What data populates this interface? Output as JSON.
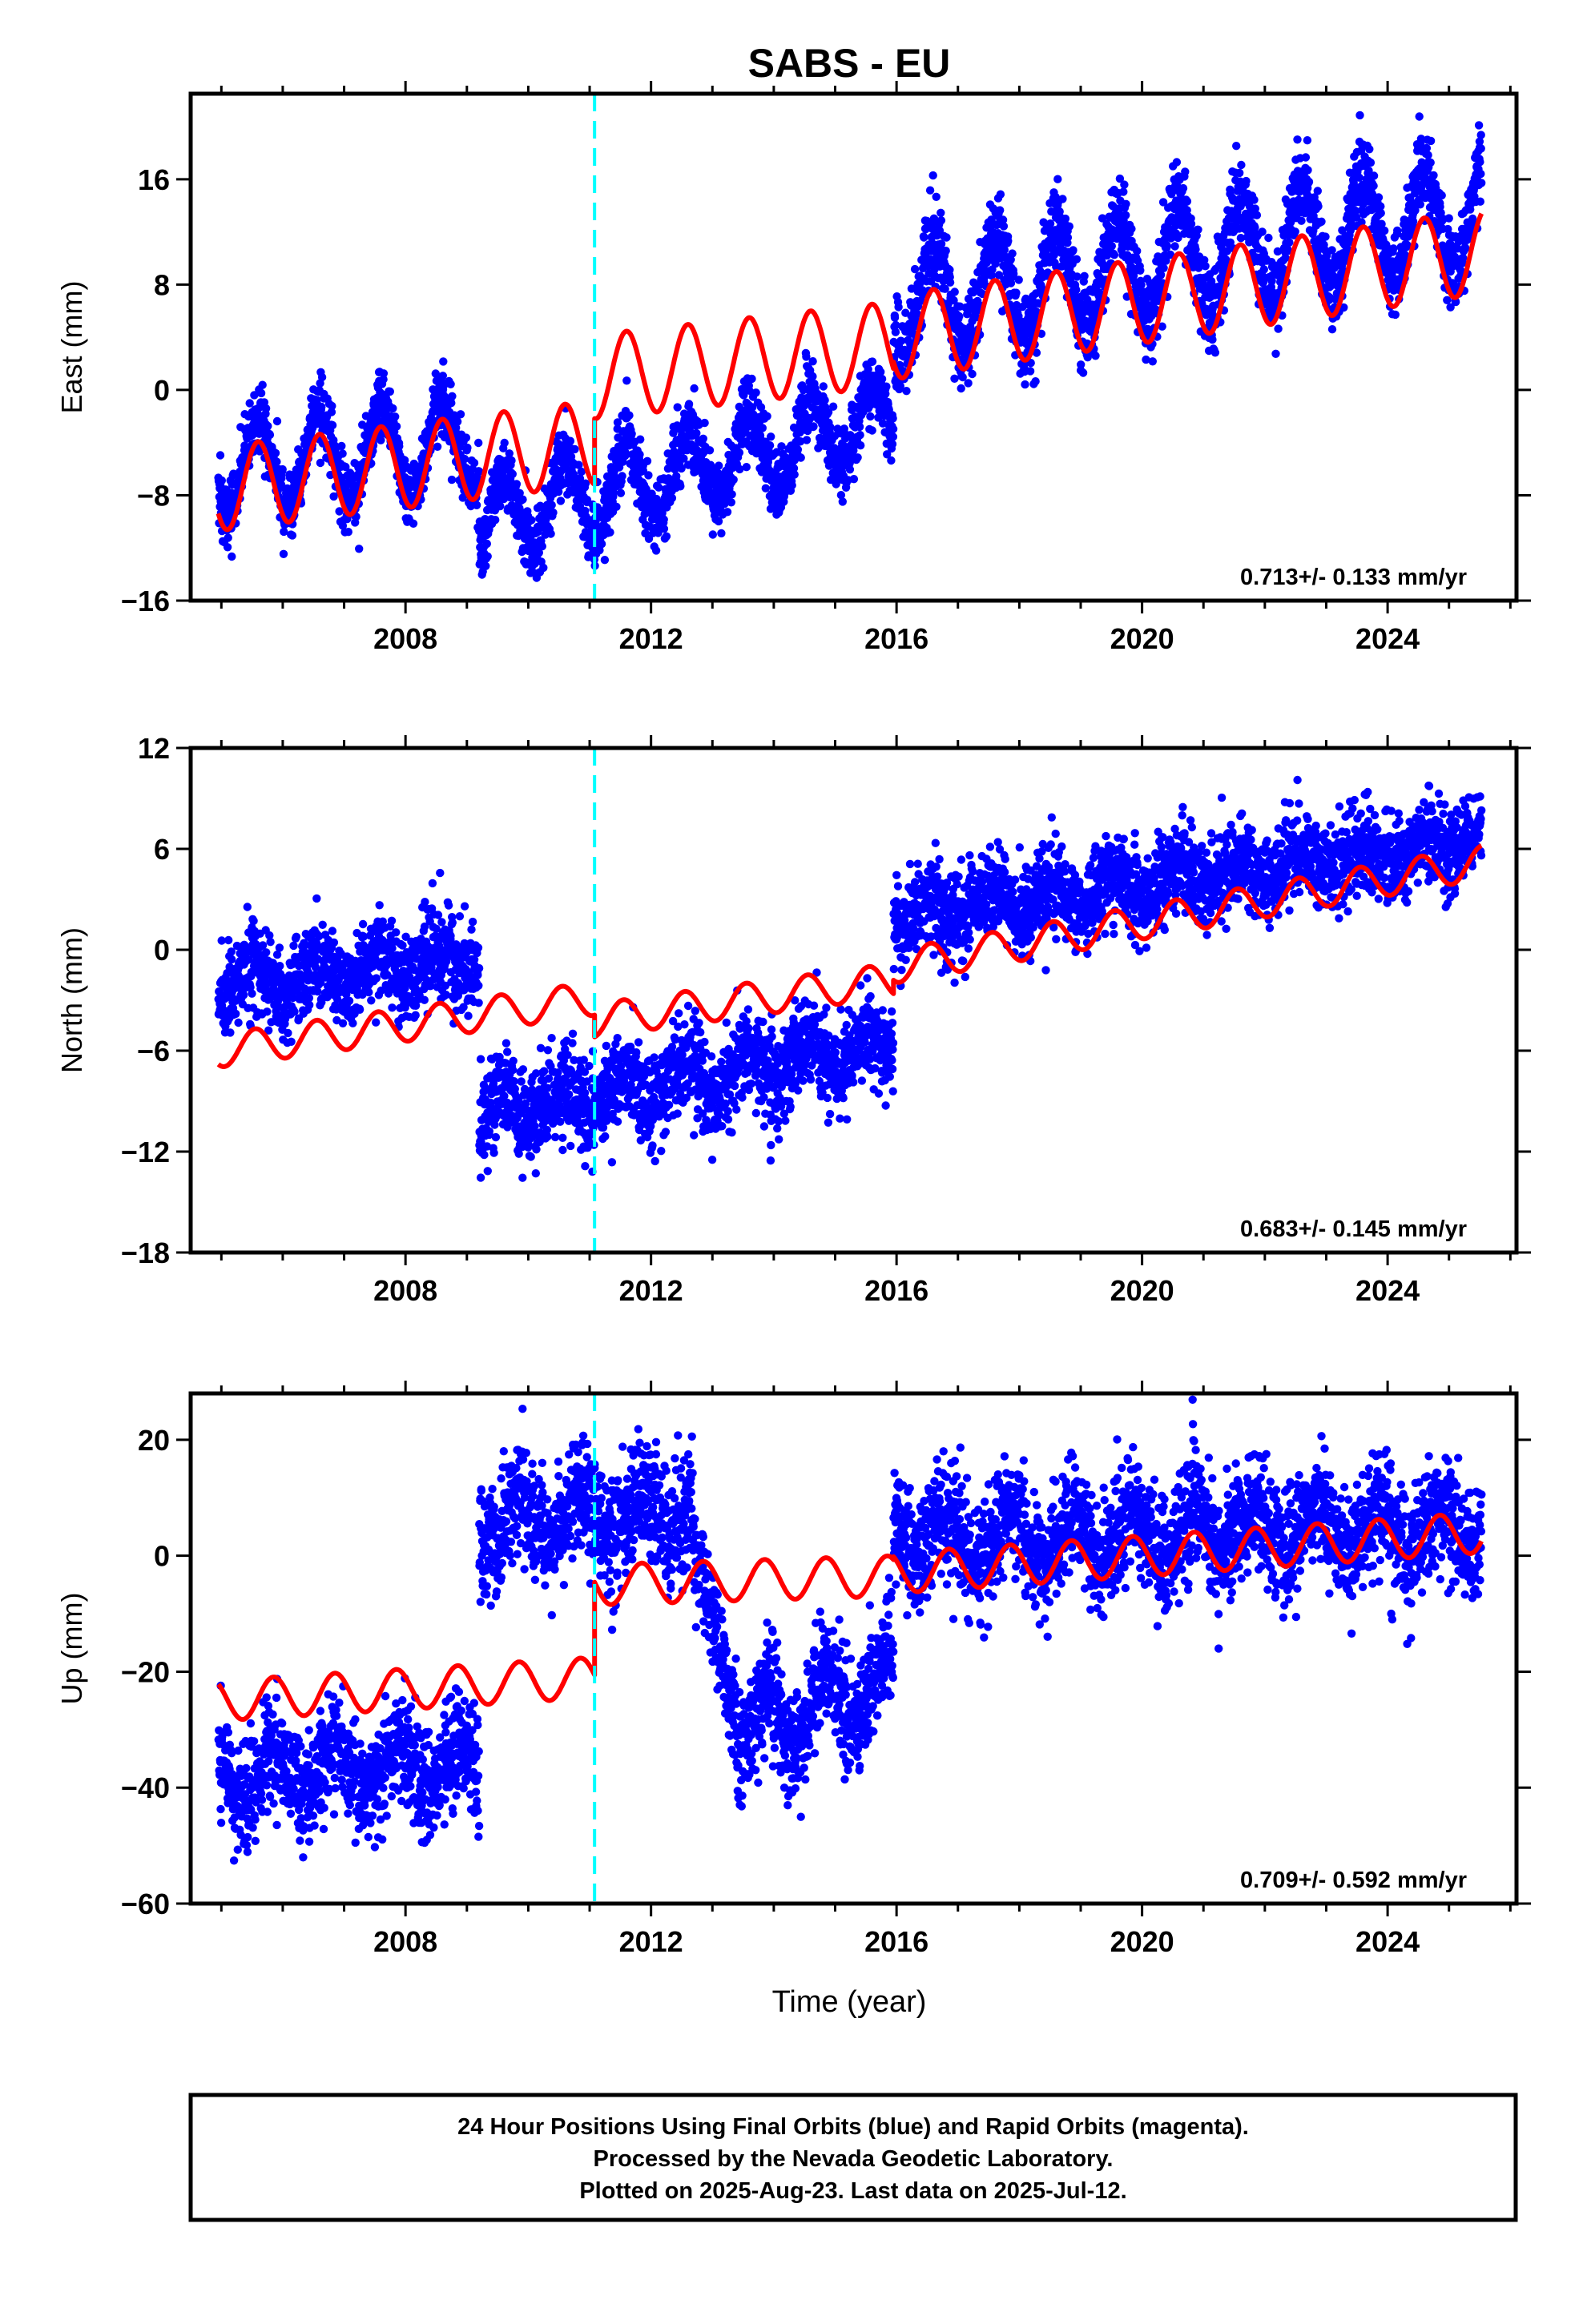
{
  "title": "SABS - EU",
  "xlabel": "Time (year)",
  "footer": {
    "lines": [
      "24 Hour Positions Using Final Orbits (blue) and Rapid Orbits (magenta).",
      "Processed by the Nevada Geodetic Laboratory.",
      "Plotted on 2025-Aug-23. Last data on 2025-Jul-12."
    ]
  },
  "colors": {
    "data_points": "#0000ff",
    "model_line": "#ff0000",
    "discontinuity": "#00ffff",
    "frame": "#000000"
  },
  "chart_data": [
    {
      "type": "scatter",
      "ylabel": "East (mm)",
      "rate_text": "0.713+/- 0.133 mm/yr",
      "xlim": [
        2004.5,
        2026.1
      ],
      "ylim": [
        -16,
        22.5
      ],
      "x_ticks": [
        2008,
        2012,
        2016,
        2020,
        2024
      ],
      "y_ticks": [
        -16,
        -8,
        0,
        8,
        16
      ],
      "discontinuity_x": 2011.08,
      "data_segments": [
        {
          "x_start": 2004.95,
          "x_end": 2009.2,
          "level_start": -6.0,
          "level_end": -4.0,
          "amplitude": 3.5,
          "scatter": 1.3
        },
        {
          "x_start": 2009.2,
          "x_end": 2015.95,
          "level_start": -10.0,
          "level_end": -2.0,
          "amplitude": 3.0,
          "scatter": 1.3
        },
        {
          "x_start": 2015.95,
          "x_end": 2025.53,
          "level_start": 6.5,
          "level_end": 13.5,
          "amplitude": 4.0,
          "scatter": 1.6
        }
      ],
      "model": {
        "segments": [
          {
            "x_start": 2004.95,
            "x_end": 2011.08,
            "level_start": -7.5,
            "level_end": -4.0
          },
          {
            "x_start": 2011.08,
            "x_end": 2015.95,
            "level_start": 1.0,
            "level_end": 3.5
          },
          {
            "x_start": 2015.95,
            "x_end": 2025.53,
            "level_start": 4.0,
            "level_end": 10.5
          }
        ],
        "amplitude": 3.2,
        "phase_year": 2005.35
      }
    },
    {
      "type": "scatter",
      "ylabel": "North (mm)",
      "rate_text": "0.683+/- 0.145 mm/yr",
      "xlim": [
        2004.5,
        2026.1
      ],
      "ylim": [
        -18,
        12
      ],
      "x_ticks": [
        2008,
        2012,
        2016,
        2020,
        2024
      ],
      "y_ticks": [
        -18,
        -12,
        -6,
        0,
        6,
        12
      ],
      "discontinuity_x": 2011.08,
      "data_segments": [
        {
          "x_start": 2004.95,
          "x_end": 2009.2,
          "level_start": -2.0,
          "level_end": -0.5,
          "amplitude": 0.8,
          "scatter": 1.3
        },
        {
          "x_start": 2009.2,
          "x_end": 2015.95,
          "level_start": -10.0,
          "level_end": -5.5,
          "amplitude": 1.0,
          "scatter": 1.4
        },
        {
          "x_start": 2015.95,
          "x_end": 2025.53,
          "level_start": 2.0,
          "level_end": 6.5,
          "amplitude": 0.8,
          "scatter": 1.3
        }
      ],
      "model": {
        "segments": [
          {
            "x_start": 2004.95,
            "x_end": 2011.08,
            "level_start": -6.0,
            "level_end": -2.9
          },
          {
            "x_start": 2011.08,
            "x_end": 2015.95,
            "level_start": -4.2,
            "level_end": -1.8
          },
          {
            "x_start": 2015.95,
            "x_end": 2025.53,
            "level_start": -1.0,
            "level_end": 5.2
          }
        ],
        "amplitude": 1.0,
        "phase_year": 2005.3
      }
    },
    {
      "type": "scatter",
      "ylabel": "Up (mm)",
      "rate_text": "0.709+/- 0.592 mm/yr",
      "xlim": [
        2004.5,
        2026.1
      ],
      "ylim": [
        -60,
        28
      ],
      "x_ticks": [
        2008,
        2012,
        2016,
        2020,
        2024
      ],
      "y_ticks": [
        -60,
        -40,
        -20,
        0,
        20
      ],
      "discontinuity_x": 2011.08,
      "data_segments": [
        {
          "x_start": 2004.95,
          "x_end": 2009.2,
          "level_start": -38.0,
          "level_end": -36.0,
          "amplitude": 4.0,
          "scatter": 4.5
        },
        {
          "x_start": 2009.2,
          "x_end": 2012.7,
          "level_start": 6.0,
          "level_end": 8.0,
          "amplitude": 4.0,
          "scatter": 5.0
        },
        {
          "x_start": 2012.7,
          "x_end": 2013.4,
          "level_start": -2.0,
          "level_end": -25.0,
          "amplitude": 2.0,
          "scatter": 5.0
        },
        {
          "x_start": 2013.4,
          "x_end": 2015.95,
          "level_start": -30.0,
          "level_end": -22.0,
          "amplitude": 5.0,
          "scatter": 5.0
        },
        {
          "x_start": 2015.95,
          "x_end": 2025.53,
          "level_start": 3.0,
          "level_end": 5.0,
          "amplitude": 4.0,
          "scatter": 5.0
        }
      ],
      "model": {
        "segments": [
          {
            "x_start": 2004.95,
            "x_end": 2011.08,
            "level_start": -25.0,
            "level_end": -21.0
          },
          {
            "x_start": 2011.08,
            "x_end": 2015.95,
            "level_start": -5.0,
            "level_end": -3.5
          },
          {
            "x_start": 2015.95,
            "x_end": 2025.53,
            "level_start": -3.0,
            "level_end": 4.0
          }
        ],
        "amplitude": 3.5,
        "phase_year": 2005.6
      }
    }
  ]
}
